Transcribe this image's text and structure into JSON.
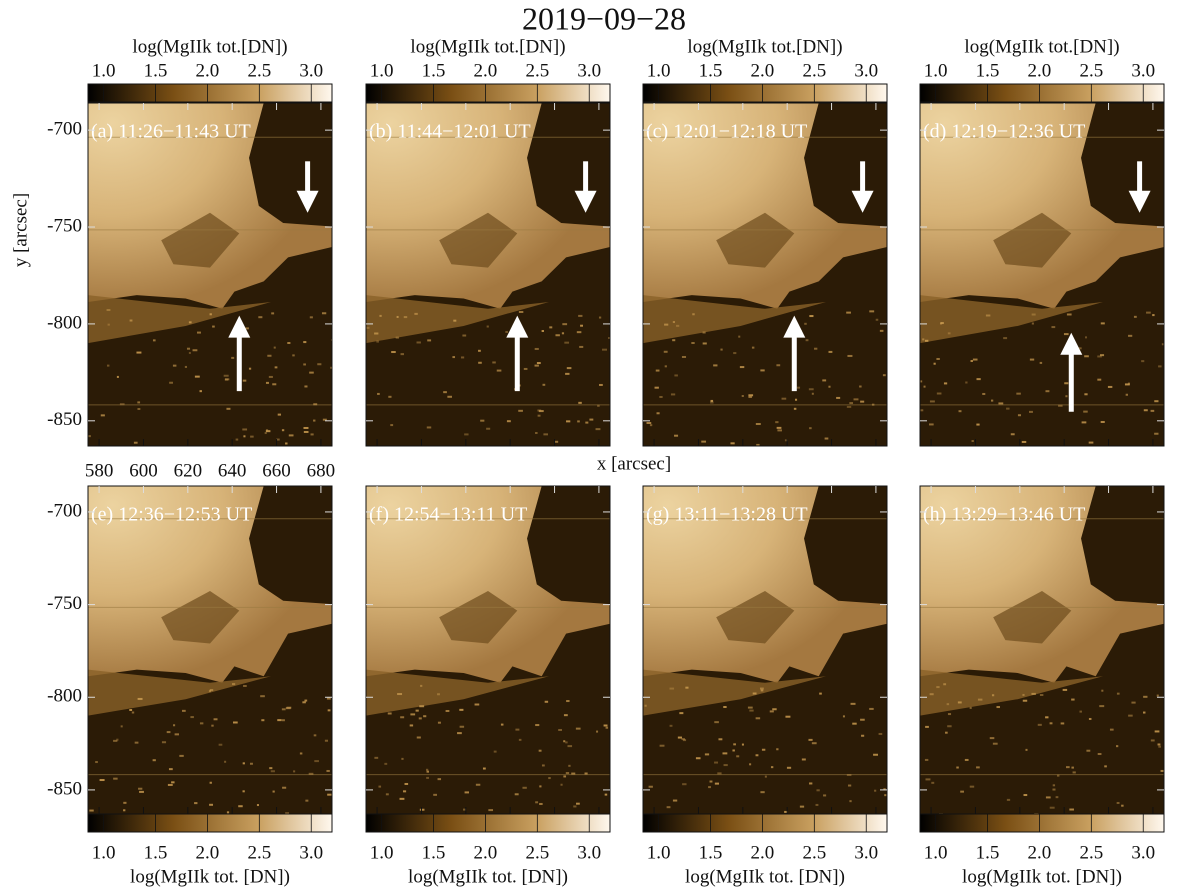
{
  "chart_data": {
    "type": "image",
    "title": "2019−09−28",
    "xlabel": "x [arcsec]",
    "ylabel": "y [arcsec]",
    "xlim": [
      575,
      685
    ],
    "ylim": [
      -863,
      -686
    ],
    "xticks": [
      580,
      600,
      620,
      640,
      660,
      680
    ],
    "yticks": [
      -700,
      -750,
      -800,
      -850
    ],
    "colorbar": {
      "label_top": "log(MgIIk tot.[DN])",
      "label_bottom": "log(MgIIk tot. [DN])",
      "clim": [
        0.85,
        3.2
      ],
      "ticks": [
        {
          "value": 1,
          "label": "1.0"
        },
        {
          "value": 1.5,
          "label": "1.5"
        },
        {
          "value": 2,
          "label": "2.0"
        },
        {
          "value": 2.5,
          "label": "2.5"
        },
        {
          "value": 3,
          "label": "3.0"
        }
      ]
    },
    "panels": [
      {
        "label": "(a) 11:26−11:43 UT"
      },
      {
        "label": "(b) 11:44−12:01 UT"
      },
      {
        "label": "(c) 12:01−12:18 UT"
      },
      {
        "label": "(d) 12:19−12:36 UT"
      },
      {
        "label": "(e) 12:36−12:53 UT"
      },
      {
        "label": "(f) 12:54−13:11 UT"
      },
      {
        "label": "(g) 13:11−13:28 UT"
      },
      {
        "label": "(h) 13:29−13:46 UT"
      }
    ]
  }
}
